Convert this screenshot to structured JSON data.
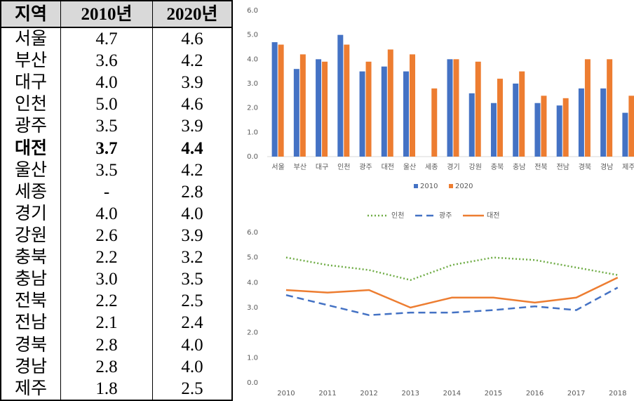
{
  "table": {
    "header": [
      "지역",
      "2010년",
      "2020년"
    ],
    "rows": [
      [
        "서울",
        "4.7",
        "4.6"
      ],
      [
        "부산",
        "3.6",
        "4.2"
      ],
      [
        "대구",
        "4.0",
        "3.9"
      ],
      [
        "인천",
        "5.0",
        "4.6"
      ],
      [
        "광주",
        "3.5",
        "3.9"
      ],
      [
        "대전",
        "3.7",
        "4.4"
      ],
      [
        "울산",
        "3.5",
        "4.2"
      ],
      [
        "세종",
        "-",
        "2.8"
      ],
      [
        "경기",
        "4.0",
        "4.0"
      ],
      [
        "강원",
        "2.6",
        "3.9"
      ],
      [
        "충북",
        "2.2",
        "3.2"
      ],
      [
        "충남",
        "3.0",
        "3.5"
      ],
      [
        "전북",
        "2.2",
        "2.5"
      ],
      [
        "전남",
        "2.1",
        "2.4"
      ],
      [
        "경북",
        "2.8",
        "4.0"
      ],
      [
        "경남",
        "2.8",
        "4.0"
      ],
      [
        "제주",
        "1.8",
        "2.5"
      ]
    ]
  },
  "chart_data": [
    {
      "type": "bar",
      "categories": [
        "서울",
        "부산",
        "대구",
        "인천",
        "광주",
        "대전",
        "울산",
        "세종",
        "경기",
        "강원",
        "충북",
        "충남",
        "전북",
        "전남",
        "경북",
        "경남",
        "제주"
      ],
      "series": [
        {
          "name": "2010",
          "color": "#4472c4",
          "values": [
            4.7,
            3.6,
            4.0,
            5.0,
            3.5,
            3.7,
            3.5,
            null,
            4.0,
            2.6,
            2.2,
            3.0,
            2.2,
            2.1,
            2.8,
            2.8,
            1.8
          ]
        },
        {
          "name": "2020",
          "color": "#ed7d31",
          "values": [
            4.6,
            4.2,
            3.9,
            4.6,
            3.9,
            4.4,
            4.2,
            2.8,
            4.0,
            3.9,
            3.2,
            3.5,
            2.5,
            2.4,
            4.0,
            4.0,
            2.5
          ]
        }
      ],
      "ylim": [
        0,
        6
      ],
      "yticks": [
        {
          "value": 0,
          "label": "0.0"
        },
        {
          "value": 1,
          "label": "1.0"
        },
        {
          "value": 2,
          "label": "2.0"
        },
        {
          "value": 3,
          "label": "3.0"
        },
        {
          "value": 4,
          "label": "4.0"
        },
        {
          "value": 5,
          "label": "5.0"
        },
        {
          "value": 6,
          "label": "6.0"
        }
      ],
      "legend": "bottom"
    },
    {
      "type": "line",
      "categories": [
        "2010",
        "2011",
        "2012",
        "2013",
        "2014",
        "2015",
        "2016",
        "2017",
        "2018"
      ],
      "series": [
        {
          "name": "인천",
          "color": "#70ad47",
          "dash": "dotted",
          "values": [
            5.0,
            4.7,
            4.5,
            4.1,
            4.7,
            5.0,
            4.9,
            4.6,
            4.3
          ]
        },
        {
          "name": "광주",
          "color": "#4472c4",
          "dash": "dashed",
          "values": [
            3.5,
            3.1,
            2.7,
            2.8,
            2.8,
            2.9,
            3.05,
            2.9,
            3.8
          ]
        },
        {
          "name": "대전",
          "color": "#ed7d31",
          "dash": "solid",
          "values": [
            3.7,
            3.6,
            3.7,
            3.0,
            3.4,
            3.4,
            3.2,
            3.4,
            4.2
          ]
        }
      ],
      "ylim": [
        0,
        6
      ],
      "yticks": [
        {
          "value": 0,
          "label": "0.0"
        },
        {
          "value": 1,
          "label": "1.0"
        },
        {
          "value": 2,
          "label": "2.0"
        },
        {
          "value": 3,
          "label": "3.0"
        },
        {
          "value": 4,
          "label": "4.0"
        },
        {
          "value": 5,
          "label": "5.0"
        },
        {
          "value": 6,
          "label": "6.0"
        }
      ],
      "legend": "top"
    }
  ]
}
